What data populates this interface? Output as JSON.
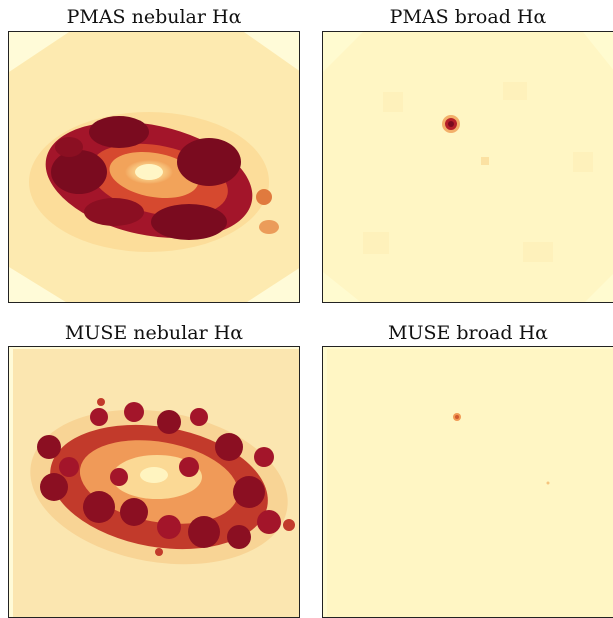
{
  "panels": [
    {
      "title": "PMAS nebular Hα",
      "image": "pmas-nebular-halpha-map"
    },
    {
      "title": "PMAS broad Hα",
      "image": "pmas-broad-halpha-map"
    },
    {
      "title": "MUSE nebular Hα",
      "image": "muse-nebular-halpha-map"
    },
    {
      "title": "MUSE broad Hα",
      "image": "muse-broad-halpha-map"
    }
  ],
  "colors": {
    "background": "#fffbd0",
    "low": "#fde9a8",
    "mid": "#f2a35a",
    "high": "#c0352b",
    "peak": "#7a0b1f"
  }
}
